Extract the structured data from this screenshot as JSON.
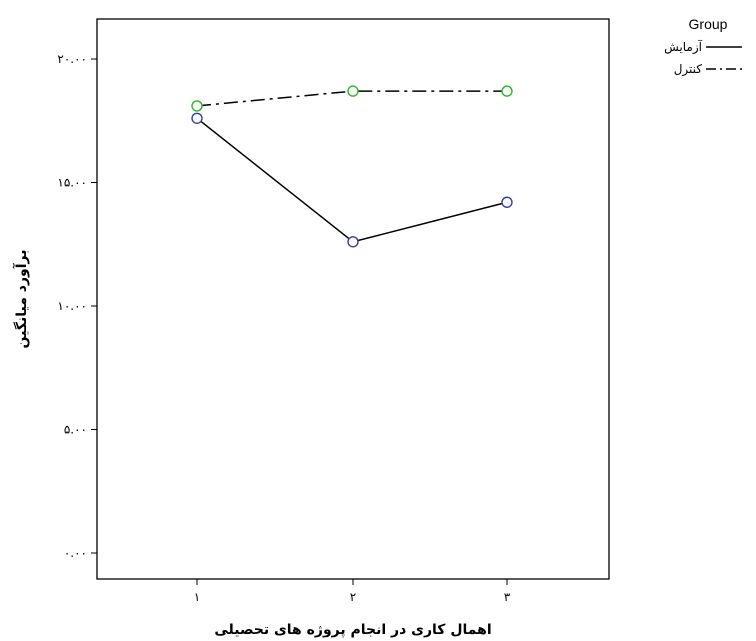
{
  "chart_data": {
    "type": "line",
    "title": "",
    "xlabel": "اهمال کاری در انجام پروژه های تحصیلی",
    "ylabel": "برآورد میانگین",
    "categories": [
      "۱",
      "۲",
      "۳"
    ],
    "yticks": [
      "۰.۰۰",
      "۵.۰۰",
      "۱۰.۰۰",
      "۱۵.۰۰",
      "۲۰.۰۰"
    ],
    "ylim": [
      0,
      21.2
    ],
    "grid": false,
    "legend": {
      "title": "Group",
      "position": "top-right, outside plot"
    },
    "series": [
      {
        "name": "آزمایش",
        "values": [
          17.6,
          12.6,
          14.2
        ],
        "line_style": "solid",
        "marker_color": "#2f3fb4"
      },
      {
        "name": "کنترل",
        "values": [
          18.1,
          18.7,
          18.7
        ],
        "line_style": "dash-dot",
        "marker_color": "#2db52d"
      }
    ]
  }
}
